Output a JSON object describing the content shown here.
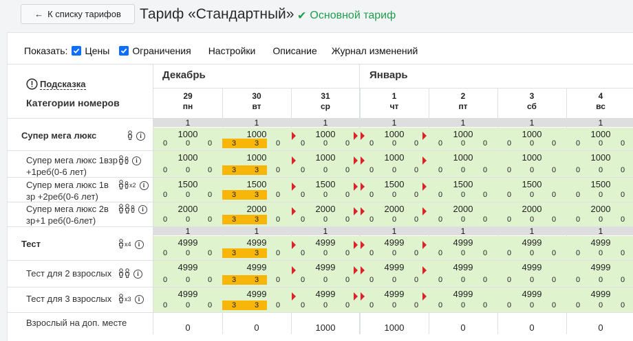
{
  "header": {
    "back_label": "К списку тарифов",
    "back_arrow": "←",
    "title": "Тариф «Стандартный»",
    "badge_check": "✔",
    "badge_label": "Основной тариф",
    "badge_color": "#1e9e4a"
  },
  "toolbar": {
    "show_label": "Показать:",
    "prices_label": "Цены",
    "prices_checked": true,
    "limits_label": "Ограничения",
    "limits_checked": true,
    "settings_label": "Настройки",
    "description_label": "Описание",
    "changelog_label": "Журнал изменений"
  },
  "grid": {
    "hint_label": "Подсказка",
    "categories_title": "Категории номеров",
    "months": [
      "Декабрь",
      "Январь"
    ],
    "days": [
      {
        "num": "29",
        "dow": "пн"
      },
      {
        "num": "30",
        "dow": "вт"
      },
      {
        "num": "31",
        "dow": "ср"
      },
      {
        "num": "1",
        "dow": "чт"
      },
      {
        "num": "2",
        "dow": "пт"
      },
      {
        "num": "3",
        "dow": "сб"
      },
      {
        "num": "4",
        "dow": "вс"
      }
    ],
    "rows": [
      {
        "label": "Супер мега люкс",
        "bold": true,
        "icons": "one",
        "avail": [
          "1",
          "1",
          "1",
          "1",
          "1",
          "1",
          "1"
        ],
        "prices": [
          "1000",
          "1000",
          "1000",
          "1000",
          "1000",
          "1000",
          "1000"
        ]
      },
      {
        "label": "Супер мега люкс 1взр +1реб(0-6 лет)",
        "bold": false,
        "icons": "adult-child",
        "prices": [
          "1000",
          "1000",
          "1000",
          "1000",
          "1000",
          "1000",
          "1000"
        ]
      },
      {
        "label": "Супер мега люкс 1в зр +2реб(0-6 лет)",
        "bold": false,
        "icons": "adult-child-x2",
        "prices": [
          "1500",
          "1500",
          "1500",
          "1500",
          "1500",
          "1500",
          "1500"
        ]
      },
      {
        "label": "Супер мега люкс 2в зр+1 реб(0-6лет)",
        "bold": false,
        "icons": "two-adult-child",
        "prices": [
          "2000",
          "2000",
          "2000",
          "2000",
          "2000",
          "2000",
          "2000"
        ]
      },
      {
        "label": "Тест",
        "bold": true,
        "icons": "x4",
        "avail": [
          "1",
          "1",
          "1",
          "1",
          "1",
          "1",
          "1"
        ],
        "prices": [
          "4999",
          "4999",
          "4999",
          "4999",
          "4999",
          "4999",
          "4999"
        ]
      },
      {
        "label": "Тест для 2 взрослых",
        "bold": false,
        "icons": "two-adults",
        "prices": [
          "4999",
          "4999",
          "4999",
          "4999",
          "4999",
          "4999",
          "4999"
        ]
      },
      {
        "label": "Тест для 3 взрослых",
        "bold": false,
        "icons": "x3",
        "prices": [
          "4999",
          "4999",
          "4999",
          "4999",
          "4999",
          "4999",
          "4999"
        ]
      }
    ],
    "mini_values": {
      "left": "0",
      "mid": "0",
      "right": "0",
      "restriction": "3"
    },
    "extra_row": {
      "label": "Взрослый на доп. месте",
      "values": [
        "0",
        "0",
        "1000",
        "1000",
        "0",
        "0",
        "0"
      ]
    },
    "x2": "x2",
    "x3": "x3",
    "x4": "x4",
    "restriction_color": "#f8b60b",
    "open_color": "#dff3cf",
    "flag_color": "#d9252a"
  }
}
